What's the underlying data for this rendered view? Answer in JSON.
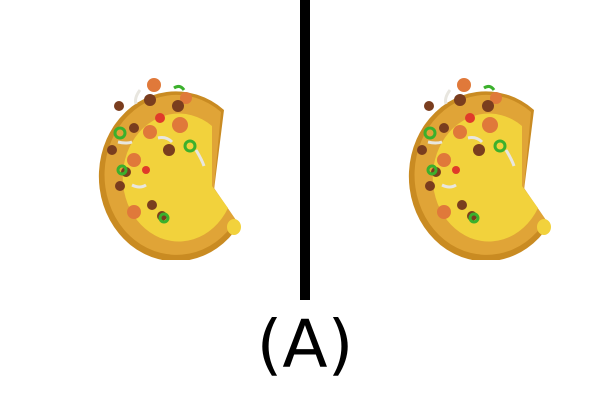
{
  "caption": "(A)",
  "figures": [
    {
      "name": "pizza-left",
      "depicts": "pizza-with-missing-slice"
    },
    {
      "name": "pizza-right",
      "depicts": "pizza-with-missing-slice"
    }
  ],
  "colors": {
    "background": "#ffffff",
    "divider": "#000000",
    "crust": "#e0a437",
    "crust_shadow": "#c98b22",
    "cheese": "#f2d23c",
    "pepperoni": "#e0793a",
    "sausage": "#7a3d1e",
    "pepper": "#3bb02c",
    "onion": "#e8e6df",
    "tomato": "#e03a2a"
  }
}
